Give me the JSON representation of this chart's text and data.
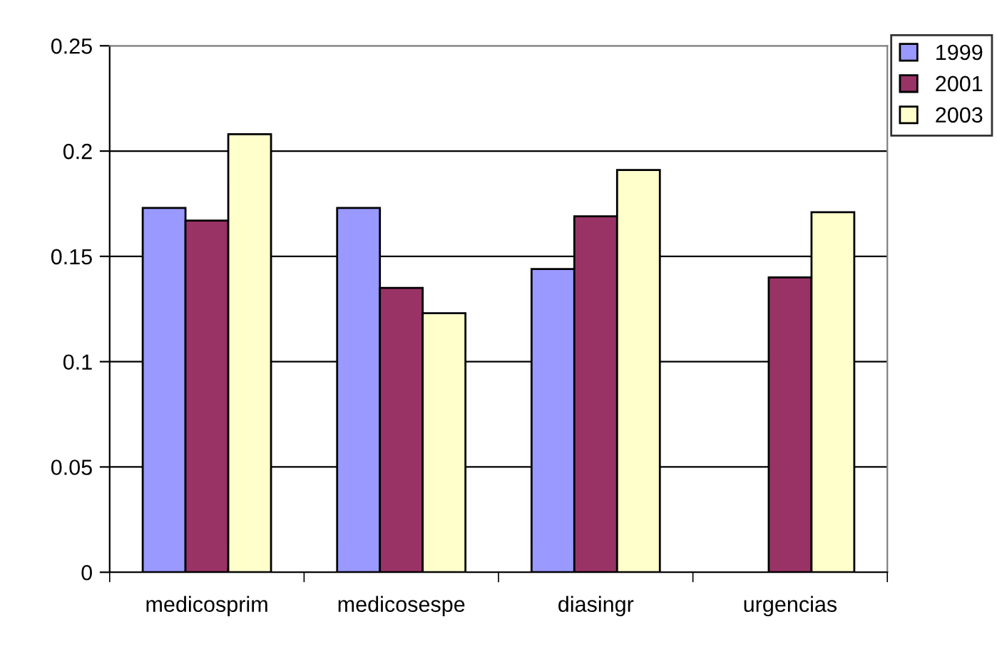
{
  "chart_data": {
    "type": "bar",
    "categories": [
      "medicosprim",
      "medicosespe",
      "diasingr",
      "urgencias"
    ],
    "series": [
      {
        "name": "1999",
        "color": "#9999ff",
        "values": [
          0.173,
          0.173,
          0.144,
          null
        ]
      },
      {
        "name": "2001",
        "color": "#993366",
        "values": [
          0.167,
          0.135,
          0.169,
          0.14
        ]
      },
      {
        "name": "2003",
        "color": "#ffffcc",
        "values": [
          0.208,
          0.123,
          0.191,
          0.171
        ]
      }
    ],
    "ylim": [
      0,
      0.25
    ],
    "yticks": [
      0,
      0.05,
      0.1,
      0.15,
      0.2,
      0.25
    ],
    "grid": "y",
    "legend": "top right"
  }
}
